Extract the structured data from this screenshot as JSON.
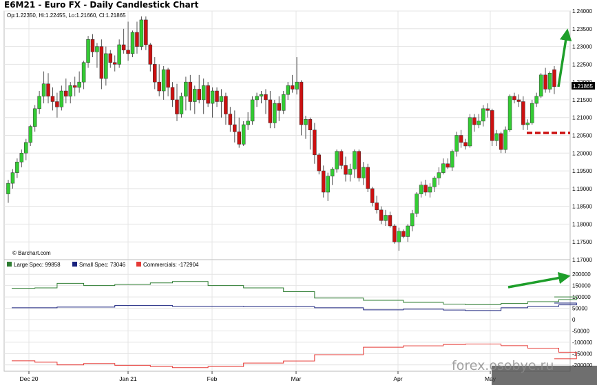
{
  "title": "E6M21 - Euro FX - Daily Candlestick Chart",
  "ohlc_text": "Op:1.22350, Hi:1.22455, Lo:1.21660, Cl:1.21865",
  "copyright": "© Barchart.com",
  "watermark": "forex.osobye.ru",
  "colors": {
    "up": "#33cc33",
    "down": "#cc1111",
    "large_spec": "#2e7d32",
    "small_spec": "#1a237e",
    "commercials": "#e53935",
    "annotation_arrow": "#1e9e2a",
    "annotation_dash": "#cc1111",
    "last_price_bg": "#000000"
  },
  "chart_data": [
    {
      "type": "candlestick",
      "title": "E6M21 - Euro FX - Daily Candlestick Chart",
      "last_price_label": "1.21865",
      "y_ticks": [
        "1.17000",
        "1.17500",
        "1.18000",
        "1.18500",
        "1.19000",
        "1.19500",
        "1.20000",
        "1.20500",
        "1.21000",
        "1.21500",
        "1.22000",
        "1.22500",
        "1.23000",
        "1.23500",
        "1.24000"
      ],
      "ylim": [
        1.17,
        1.24
      ],
      "x_labels": [
        "Dec 20",
        "Jan 21",
        "Feb",
        "Mar",
        "Apr",
        "May"
      ],
      "grid": true,
      "candles": [
        {
          "o": 1.1885,
          "h": 1.1925,
          "l": 1.186,
          "c": 1.1915
        },
        {
          "o": 1.1915,
          "h": 1.1955,
          "l": 1.19,
          "c": 1.1945
        },
        {
          "o": 1.1945,
          "h": 1.1985,
          "l": 1.193,
          "c": 1.1975
        },
        {
          "o": 1.1975,
          "h": 1.201,
          "l": 1.196,
          "c": 1.2
        },
        {
          "o": 1.2,
          "h": 1.204,
          "l": 1.198,
          "c": 1.203
        },
        {
          "o": 1.203,
          "h": 1.208,
          "l": 1.202,
          "c": 1.2075
        },
        {
          "o": 1.2075,
          "h": 1.2135,
          "l": 1.206,
          "c": 1.2125
        },
        {
          "o": 1.2125,
          "h": 1.2175,
          "l": 1.211,
          "c": 1.216
        },
        {
          "o": 1.216,
          "h": 1.223,
          "l": 1.214,
          "c": 1.2195
        },
        {
          "o": 1.2195,
          "h": 1.2225,
          "l": 1.214,
          "c": 1.216
        },
        {
          "o": 1.216,
          "h": 1.2185,
          "l": 1.212,
          "c": 1.2145
        },
        {
          "o": 1.2145,
          "h": 1.217,
          "l": 1.21,
          "c": 1.213
        },
        {
          "o": 1.213,
          "h": 1.219,
          "l": 1.212,
          "c": 1.2175
        },
        {
          "o": 1.2175,
          "h": 1.221,
          "l": 1.214,
          "c": 1.216
        },
        {
          "o": 1.216,
          "h": 1.22,
          "l": 1.214,
          "c": 1.219
        },
        {
          "o": 1.219,
          "h": 1.2215,
          "l": 1.216,
          "c": 1.2185
        },
        {
          "o": 1.2185,
          "h": 1.223,
          "l": 1.217,
          "c": 1.22
        },
        {
          "o": 1.22,
          "h": 1.226,
          "l": 1.218,
          "c": 1.2255
        },
        {
          "o": 1.2255,
          "h": 1.233,
          "l": 1.224,
          "c": 1.232
        },
        {
          "o": 1.232,
          "h": 1.2335,
          "l": 1.227,
          "c": 1.2285
        },
        {
          "o": 1.2285,
          "h": 1.231,
          "l": 1.224,
          "c": 1.23
        },
        {
          "o": 1.23,
          "h": 1.232,
          "l": 1.218,
          "c": 1.221
        },
        {
          "o": 1.221,
          "h": 1.23,
          "l": 1.219,
          "c": 1.228
        },
        {
          "o": 1.228,
          "h": 1.229,
          "l": 1.224,
          "c": 1.2255
        },
        {
          "o": 1.2255,
          "h": 1.2275,
          "l": 1.223,
          "c": 1.225
        },
        {
          "o": 1.225,
          "h": 1.232,
          "l": 1.224,
          "c": 1.2305
        },
        {
          "o": 1.2305,
          "h": 1.235,
          "l": 1.228,
          "c": 1.229
        },
        {
          "o": 1.229,
          "h": 1.237,
          "l": 1.226,
          "c": 1.228
        },
        {
          "o": 1.228,
          "h": 1.2345,
          "l": 1.227,
          "c": 1.234
        },
        {
          "o": 1.234,
          "h": 1.237,
          "l": 1.228,
          "c": 1.23
        },
        {
          "o": 1.23,
          "h": 1.2385,
          "l": 1.229,
          "c": 1.2375
        },
        {
          "o": 1.2375,
          "h": 1.2385,
          "l": 1.229,
          "c": 1.2305
        },
        {
          "o": 1.2305,
          "h": 1.231,
          "l": 1.223,
          "c": 1.225
        },
        {
          "o": 1.225,
          "h": 1.227,
          "l": 1.218,
          "c": 1.22
        },
        {
          "o": 1.22,
          "h": 1.225,
          "l": 1.216,
          "c": 1.2175
        },
        {
          "o": 1.2175,
          "h": 1.2245,
          "l": 1.215,
          "c": 1.2235
        },
        {
          "o": 1.2235,
          "h": 1.224,
          "l": 1.216,
          "c": 1.2185
        },
        {
          "o": 1.2185,
          "h": 1.22,
          "l": 1.213,
          "c": 1.215
        },
        {
          "o": 1.215,
          "h": 1.2195,
          "l": 1.209,
          "c": 1.211
        },
        {
          "o": 1.211,
          "h": 1.217,
          "l": 1.21,
          "c": 1.216
        },
        {
          "o": 1.216,
          "h": 1.2215,
          "l": 1.212,
          "c": 1.22
        },
        {
          "o": 1.22,
          "h": 1.222,
          "l": 1.212,
          "c": 1.2145
        },
        {
          "o": 1.2145,
          "h": 1.219,
          "l": 1.211,
          "c": 1.218
        },
        {
          "o": 1.218,
          "h": 1.222,
          "l": 1.214,
          "c": 1.215
        },
        {
          "o": 1.215,
          "h": 1.221,
          "l": 1.211,
          "c": 1.219
        },
        {
          "o": 1.219,
          "h": 1.22,
          "l": 1.213,
          "c": 1.214
        },
        {
          "o": 1.214,
          "h": 1.2185,
          "l": 1.21,
          "c": 1.2175
        },
        {
          "o": 1.2175,
          "h": 1.2185,
          "l": 1.213,
          "c": 1.2145
        },
        {
          "o": 1.2145,
          "h": 1.218,
          "l": 1.21,
          "c": 1.216
        },
        {
          "o": 1.216,
          "h": 1.217,
          "l": 1.208,
          "c": 1.211
        },
        {
          "o": 1.211,
          "h": 1.213,
          "l": 1.206,
          "c": 1.208
        },
        {
          "o": 1.208,
          "h": 1.212,
          "l": 1.203,
          "c": 1.206
        },
        {
          "o": 1.206,
          "h": 1.21,
          "l": 1.2015,
          "c": 1.2025
        },
        {
          "o": 1.2025,
          "h": 1.209,
          "l": 1.202,
          "c": 1.208
        },
        {
          "o": 1.208,
          "h": 1.2115,
          "l": 1.2065,
          "c": 1.209
        },
        {
          "o": 1.209,
          "h": 1.216,
          "l": 1.208,
          "c": 1.215
        },
        {
          "o": 1.215,
          "h": 1.217,
          "l": 1.213,
          "c": 1.216
        },
        {
          "o": 1.216,
          "h": 1.2175,
          "l": 1.214,
          "c": 1.2165
        },
        {
          "o": 1.2165,
          "h": 1.218,
          "l": 1.211,
          "c": 1.215
        },
        {
          "o": 1.215,
          "h": 1.2175,
          "l": 1.207,
          "c": 1.2085
        },
        {
          "o": 1.2085,
          "h": 1.215,
          "l": 1.207,
          "c": 1.214
        },
        {
          "o": 1.214,
          "h": 1.216,
          "l": 1.209,
          "c": 1.212
        },
        {
          "o": 1.212,
          "h": 1.2175,
          "l": 1.211,
          "c": 1.2165
        },
        {
          "o": 1.2165,
          "h": 1.22,
          "l": 1.215,
          "c": 1.219
        },
        {
          "o": 1.219,
          "h": 1.222,
          "l": 1.217,
          "c": 1.218
        },
        {
          "o": 1.218,
          "h": 1.227,
          "l": 1.2165,
          "c": 1.22
        },
        {
          "o": 1.22,
          "h": 1.2205,
          "l": 1.205,
          "c": 1.208
        },
        {
          "o": 1.208,
          "h": 1.2105,
          "l": 1.204,
          "c": 1.2095
        },
        {
          "o": 1.2095,
          "h": 1.21,
          "l": 1.201,
          "c": 1.2065
        },
        {
          "o": 1.2065,
          "h": 1.2085,
          "l": 1.197,
          "c": 1.1995
        },
        {
          "o": 1.1995,
          "h": 1.2,
          "l": 1.194,
          "c": 1.195
        },
        {
          "o": 1.195,
          "h": 1.1965,
          "l": 1.1875,
          "c": 1.189
        },
        {
          "o": 1.189,
          "h": 1.1945,
          "l": 1.1865,
          "c": 1.1935
        },
        {
          "o": 1.1935,
          "h": 1.196,
          "l": 1.191,
          "c": 1.1955
        },
        {
          "o": 1.1955,
          "h": 1.201,
          "l": 1.1945,
          "c": 1.2005
        },
        {
          "o": 1.2005,
          "h": 1.201,
          "l": 1.1955,
          "c": 1.1965
        },
        {
          "o": 1.1965,
          "h": 1.199,
          "l": 1.192,
          "c": 1.194
        },
        {
          "o": 1.194,
          "h": 1.197,
          "l": 1.192,
          "c": 1.1955
        },
        {
          "o": 1.1955,
          "h": 1.201,
          "l": 1.193,
          "c": 1.2005
        },
        {
          "o": 1.2005,
          "h": 1.201,
          "l": 1.192,
          "c": 1.193
        },
        {
          "o": 1.193,
          "h": 1.1975,
          "l": 1.191,
          "c": 1.196
        },
        {
          "o": 1.196,
          "h": 1.197,
          "l": 1.189,
          "c": 1.19
        },
        {
          "o": 1.19,
          "h": 1.1905,
          "l": 1.185,
          "c": 1.186
        },
        {
          "o": 1.186,
          "h": 1.188,
          "l": 1.183,
          "c": 1.184
        },
        {
          "o": 1.184,
          "h": 1.185,
          "l": 1.18,
          "c": 1.181
        },
        {
          "o": 1.181,
          "h": 1.184,
          "l": 1.1795,
          "c": 1.1825
        },
        {
          "o": 1.1825,
          "h": 1.1835,
          "l": 1.179,
          "c": 1.1795
        },
        {
          "o": 1.1795,
          "h": 1.18,
          "l": 1.1745,
          "c": 1.175
        },
        {
          "o": 1.175,
          "h": 1.179,
          "l": 1.1725,
          "c": 1.178
        },
        {
          "o": 1.178,
          "h": 1.1785,
          "l": 1.176,
          "c": 1.1765
        },
        {
          "o": 1.1765,
          "h": 1.18,
          "l": 1.175,
          "c": 1.1795
        },
        {
          "o": 1.1795,
          "h": 1.184,
          "l": 1.178,
          "c": 1.183
        },
        {
          "o": 1.183,
          "h": 1.189,
          "l": 1.182,
          "c": 1.1885
        },
        {
          "o": 1.1885,
          "h": 1.192,
          "l": 1.1875,
          "c": 1.191
        },
        {
          "o": 1.191,
          "h": 1.1925,
          "l": 1.188,
          "c": 1.189
        },
        {
          "o": 1.189,
          "h": 1.1915,
          "l": 1.1875,
          "c": 1.1905
        },
        {
          "o": 1.1905,
          "h": 1.1935,
          "l": 1.189,
          "c": 1.193
        },
        {
          "o": 1.193,
          "h": 1.196,
          "l": 1.191,
          "c": 1.1945
        },
        {
          "o": 1.1945,
          "h": 1.1985,
          "l": 1.194,
          "c": 1.197
        },
        {
          "o": 1.197,
          "h": 1.1985,
          "l": 1.1955,
          "c": 1.196
        },
        {
          "o": 1.196,
          "h": 1.201,
          "l": 1.195,
          "c": 1.2005
        },
        {
          "o": 1.2005,
          "h": 1.206,
          "l": 1.199,
          "c": 1.205
        },
        {
          "o": 1.205,
          "h": 1.2065,
          "l": 1.2015,
          "c": 1.203
        },
        {
          "o": 1.203,
          "h": 1.204,
          "l": 1.201,
          "c": 1.202
        },
        {
          "o": 1.202,
          "h": 1.211,
          "l": 1.2015,
          "c": 1.21
        },
        {
          "o": 1.21,
          "h": 1.211,
          "l": 1.206,
          "c": 1.208
        },
        {
          "o": 1.208,
          "h": 1.211,
          "l": 1.207,
          "c": 1.209
        },
        {
          "o": 1.209,
          "h": 1.2135,
          "l": 1.2075,
          "c": 1.2125
        },
        {
          "o": 1.2125,
          "h": 1.214,
          "l": 1.21,
          "c": 1.212
        },
        {
          "o": 1.212,
          "h": 1.2125,
          "l": 1.202,
          "c": 1.2035
        },
        {
          "o": 1.2035,
          "h": 1.2065,
          "l": 1.202,
          "c": 1.2055
        },
        {
          "o": 1.2055,
          "h": 1.206,
          "l": 1.2,
          "c": 1.201
        },
        {
          "o": 1.201,
          "h": 1.2075,
          "l": 1.2,
          "c": 1.2065
        },
        {
          "o": 1.2065,
          "h": 1.2165,
          "l": 1.206,
          "c": 1.216
        },
        {
          "o": 1.216,
          "h": 1.217,
          "l": 1.214,
          "c": 1.215
        },
        {
          "o": 1.215,
          "h": 1.2165,
          "l": 1.213,
          "c": 1.2145
        },
        {
          "o": 1.2145,
          "h": 1.216,
          "l": 1.2065,
          "c": 1.208
        },
        {
          "o": 1.208,
          "h": 1.2095,
          "l": 1.2065,
          "c": 1.2085
        },
        {
          "o": 1.2085,
          "h": 1.215,
          "l": 1.208,
          "c": 1.214
        },
        {
          "o": 1.214,
          "h": 1.217,
          "l": 1.213,
          "c": 1.216
        },
        {
          "o": 1.216,
          "h": 1.2225,
          "l": 1.2155,
          "c": 1.222
        },
        {
          "o": 1.222,
          "h": 1.224,
          "l": 1.217,
          "c": 1.218
        },
        {
          "o": 1.218,
          "h": 1.223,
          "l": 1.217,
          "c": 1.2225
        },
        {
          "o": 1.2235,
          "h": 1.2245,
          "l": 1.2166,
          "c": 1.2187
        }
      ],
      "annotations": [
        "up-arrow",
        "support-dash-line"
      ]
    },
    {
      "type": "line",
      "y_ticks": [
        "200000",
        "150000",
        "100000",
        "50000",
        "0",
        "-50000",
        "-100000",
        "-150000",
        "-200000"
      ],
      "ylim": [
        -225000,
        225000
      ],
      "series": [
        {
          "name": "Large Spec: 99858",
          "color_key": "large_spec",
          "steps": [
            [
              0,
              138000
            ],
            [
              6,
              140000
            ],
            [
              11,
              160000
            ],
            [
              17,
              150000
            ],
            [
              24,
              155000
            ],
            [
              32,
              162000
            ],
            [
              37,
              168000
            ],
            [
              45,
              150000
            ],
            [
              53,
              140000
            ],
            [
              62,
              123000
            ],
            [
              69,
              95000
            ],
            [
              80,
              85000
            ],
            [
              89,
              76000
            ],
            [
              98,
              68000
            ],
            [
              103,
              66000
            ],
            [
              111,
              71000
            ],
            [
              117,
              79000
            ],
            [
              124,
              88000
            ],
            [
              128,
              99858
            ]
          ]
        },
        {
          "name": "Small Spec: 73046",
          "color_key": "small_spec",
          "steps": [
            [
              0,
              52000
            ],
            [
              11,
              55000
            ],
            [
              24,
              62000
            ],
            [
              37,
              58000
            ],
            [
              53,
              57000
            ],
            [
              69,
              52000
            ],
            [
              80,
              43000
            ],
            [
              89,
              46000
            ],
            [
              98,
              42000
            ],
            [
              103,
              40000
            ],
            [
              111,
              52000
            ],
            [
              117,
              58000
            ],
            [
              124,
              65000
            ],
            [
              128,
              73046
            ]
          ]
        },
        {
          "name": "Commercials: -172904",
          "color_key": "commercials",
          "steps": [
            [
              0,
              -182000
            ],
            [
              6,
              -188000
            ],
            [
              11,
              -200000
            ],
            [
              17,
              -194000
            ],
            [
              24,
              -202000
            ],
            [
              32,
              -207000
            ],
            [
              37,
              -212000
            ],
            [
              45,
              -207000
            ],
            [
              53,
              -192000
            ],
            [
              62,
              -183000
            ],
            [
              69,
              -155000
            ],
            [
              80,
              -122000
            ],
            [
              89,
              -116000
            ],
            [
              98,
              -110000
            ],
            [
              103,
              -108000
            ],
            [
              111,
              -115000
            ],
            [
              117,
              -126000
            ],
            [
              124,
              -144000
            ],
            [
              128,
              -172904
            ]
          ]
        }
      ],
      "annotations": [
        "up-arrow"
      ]
    }
  ]
}
